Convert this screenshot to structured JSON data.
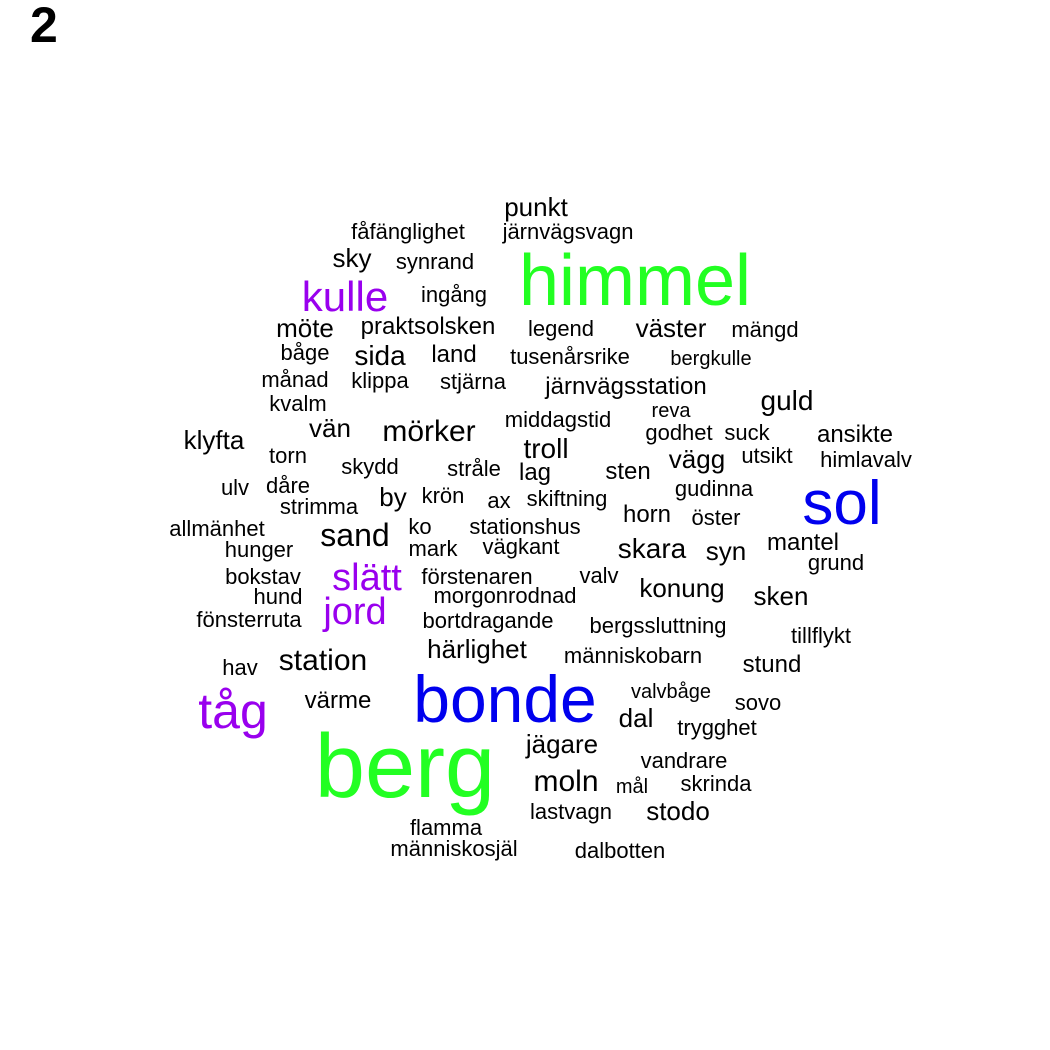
{
  "panel_label": "2",
  "colors": {
    "large_green": "#22ff22",
    "large_blue": "#0000ee",
    "medium_purple": "#9900ee",
    "small_black": "#000000"
  },
  "words": [
    {
      "text": "berg",
      "tier": "large_green"
    },
    {
      "text": "himmel",
      "tier": "large_green"
    },
    {
      "text": "bonde",
      "tier": "large_blue"
    },
    {
      "text": "sol",
      "tier": "large_blue"
    },
    {
      "text": "tåg",
      "tier": "medium_purple"
    },
    {
      "text": "kulle",
      "tier": "medium_purple"
    },
    {
      "text": "slätt",
      "tier": "medium_purple"
    },
    {
      "text": "jord",
      "tier": "medium_purple"
    },
    {
      "text": "punkt",
      "tier": "small_black"
    },
    {
      "text": "fåfänglighet",
      "tier": "small_black"
    },
    {
      "text": "järnvägsvagn",
      "tier": "small_black"
    },
    {
      "text": "sky",
      "tier": "small_black"
    },
    {
      "text": "synrand",
      "tier": "small_black"
    },
    {
      "text": "ingång",
      "tier": "small_black"
    },
    {
      "text": "möte",
      "tier": "small_black"
    },
    {
      "text": "praktsolsken",
      "tier": "small_black"
    },
    {
      "text": "legend",
      "tier": "small_black"
    },
    {
      "text": "väster",
      "tier": "small_black"
    },
    {
      "text": "mängd",
      "tier": "small_black"
    },
    {
      "text": "båge",
      "tier": "small_black"
    },
    {
      "text": "sida",
      "tier": "small_black"
    },
    {
      "text": "land",
      "tier": "small_black"
    },
    {
      "text": "tusenårsrike",
      "tier": "small_black"
    },
    {
      "text": "bergkulle",
      "tier": "small_black"
    },
    {
      "text": "månad",
      "tier": "small_black"
    },
    {
      "text": "klippa",
      "tier": "small_black"
    },
    {
      "text": "stjärna",
      "tier": "small_black"
    },
    {
      "text": "järnvägsstation",
      "tier": "small_black"
    },
    {
      "text": "guld",
      "tier": "small_black"
    },
    {
      "text": "kvalm",
      "tier": "small_black"
    },
    {
      "text": "vän",
      "tier": "small_black"
    },
    {
      "text": "mörker",
      "tier": "small_black"
    },
    {
      "text": "middagstid",
      "tier": "small_black"
    },
    {
      "text": "reva",
      "tier": "small_black"
    },
    {
      "text": "godhet",
      "tier": "small_black"
    },
    {
      "text": "suck",
      "tier": "small_black"
    },
    {
      "text": "ansikte",
      "tier": "small_black"
    },
    {
      "text": "klyfta",
      "tier": "small_black"
    },
    {
      "text": "torn",
      "tier": "small_black"
    },
    {
      "text": "troll",
      "tier": "small_black"
    },
    {
      "text": "vägg",
      "tier": "small_black"
    },
    {
      "text": "utsikt",
      "tier": "small_black"
    },
    {
      "text": "himlavalv",
      "tier": "small_black"
    },
    {
      "text": "skydd",
      "tier": "small_black"
    },
    {
      "text": "stråle",
      "tier": "small_black"
    },
    {
      "text": "lag",
      "tier": "small_black"
    },
    {
      "text": "sten",
      "tier": "small_black"
    },
    {
      "text": "ulv",
      "tier": "small_black"
    },
    {
      "text": "dåre",
      "tier": "small_black"
    },
    {
      "text": "strimma",
      "tier": "small_black"
    },
    {
      "text": "by",
      "tier": "small_black"
    },
    {
      "text": "krön",
      "tier": "small_black"
    },
    {
      "text": "ax",
      "tier": "small_black"
    },
    {
      "text": "skiftning",
      "tier": "small_black"
    },
    {
      "text": "gudinna",
      "tier": "small_black"
    },
    {
      "text": "allmänhet",
      "tier": "small_black"
    },
    {
      "text": "sand",
      "tier": "small_black"
    },
    {
      "text": "ko",
      "tier": "small_black"
    },
    {
      "text": "stationshus",
      "tier": "small_black"
    },
    {
      "text": "horn",
      "tier": "small_black"
    },
    {
      "text": "öster",
      "tier": "small_black"
    },
    {
      "text": "hunger",
      "tier": "small_black"
    },
    {
      "text": "mark",
      "tier": "small_black"
    },
    {
      "text": "vägkant",
      "tier": "small_black"
    },
    {
      "text": "skara",
      "tier": "small_black"
    },
    {
      "text": "syn",
      "tier": "small_black"
    },
    {
      "text": "mantel",
      "tier": "small_black"
    },
    {
      "text": "grund",
      "tier": "small_black"
    },
    {
      "text": "bokstav",
      "tier": "small_black"
    },
    {
      "text": "förstenaren",
      "tier": "small_black"
    },
    {
      "text": "valv",
      "tier": "small_black"
    },
    {
      "text": "konung",
      "tier": "small_black"
    },
    {
      "text": "hund",
      "tier": "small_black"
    },
    {
      "text": "morgonrodnad",
      "tier": "small_black"
    },
    {
      "text": "sken",
      "tier": "small_black"
    },
    {
      "text": "fönsterruta",
      "tier": "small_black"
    },
    {
      "text": "bortdragande",
      "tier": "small_black"
    },
    {
      "text": "bergssluttning",
      "tier": "small_black"
    },
    {
      "text": "tillflykt",
      "tier": "small_black"
    },
    {
      "text": "härlighet",
      "tier": "small_black"
    },
    {
      "text": "station",
      "tier": "small_black"
    },
    {
      "text": "människobarn",
      "tier": "small_black"
    },
    {
      "text": "hav",
      "tier": "small_black"
    },
    {
      "text": "stund",
      "tier": "small_black"
    },
    {
      "text": "värme",
      "tier": "small_black"
    },
    {
      "text": "valvbåge",
      "tier": "small_black"
    },
    {
      "text": "sovo",
      "tier": "small_black"
    },
    {
      "text": "dal",
      "tier": "small_black"
    },
    {
      "text": "trygghet",
      "tier": "small_black"
    },
    {
      "text": "jägare",
      "tier": "small_black"
    },
    {
      "text": "vandrare",
      "tier": "small_black"
    },
    {
      "text": "moln",
      "tier": "small_black"
    },
    {
      "text": "mål",
      "tier": "small_black"
    },
    {
      "text": "skrinda",
      "tier": "small_black"
    },
    {
      "text": "lastvagn",
      "tier": "small_black"
    },
    {
      "text": "stodo",
      "tier": "small_black"
    },
    {
      "text": "flamma",
      "tier": "small_black"
    },
    {
      "text": "människosjäl",
      "tier": "small_black"
    },
    {
      "text": "dalbotten",
      "tier": "small_black"
    }
  ]
}
